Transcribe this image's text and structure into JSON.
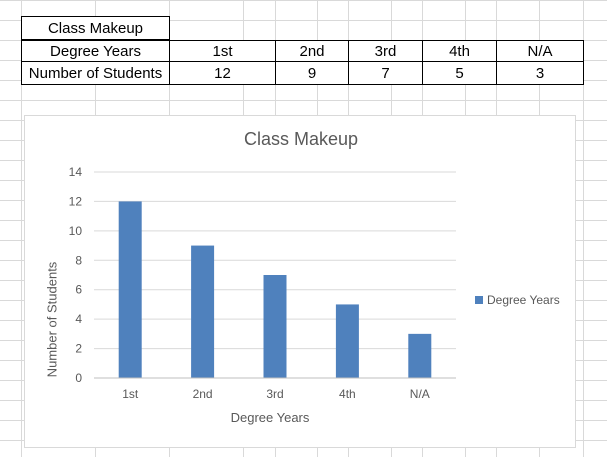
{
  "table": {
    "title": "Class Makeup",
    "header_label": "Degree Years",
    "row_label": "Number of Students",
    "columns": [
      "1st",
      "2nd",
      "3rd",
      "4th",
      "N/A"
    ],
    "values": [
      "12",
      "9",
      "7",
      "5",
      "3"
    ]
  },
  "colors": {
    "bar": "#4f81bd",
    "grid": "#d9d9d9",
    "text": "#595959"
  },
  "chart_data": {
    "type": "bar",
    "title": "Class Makeup",
    "xlabel": "Degree Years",
    "ylabel": "Number of Students",
    "categories": [
      "1st",
      "2nd",
      "3rd",
      "4th",
      "N/A"
    ],
    "series": [
      {
        "name": "Degree Years",
        "values": [
          12,
          9,
          7,
          5,
          3
        ]
      }
    ],
    "ylim": [
      0,
      14
    ],
    "yticks": [
      0,
      2,
      4,
      6,
      8,
      10,
      12,
      14
    ],
    "grid": true,
    "legend": "right"
  }
}
